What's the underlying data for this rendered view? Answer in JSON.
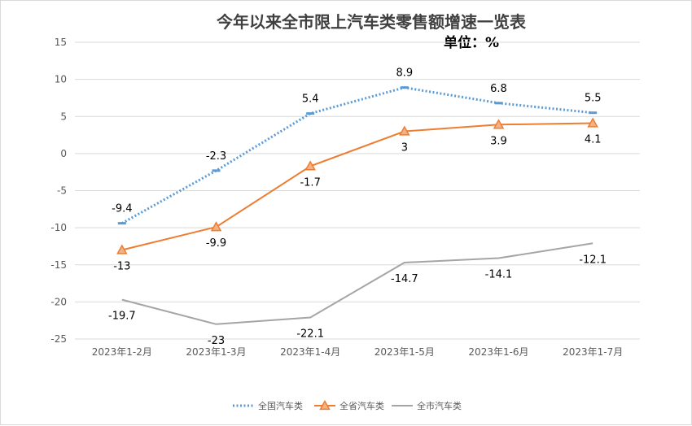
{
  "chart_data": {
    "type": "line",
    "title": "今年以来全市限上汽车类零售额增速一览表",
    "unit_note": "单位：%",
    "categories": [
      "2023年1-2月",
      "2023年1-3月",
      "2023年1-4月",
      "2023年1-5月",
      "2023年1-6月",
      "2023年1-7月"
    ],
    "ylim": [
      -25,
      15
    ],
    "yticks": [
      -25,
      -20,
      -15,
      -10,
      -5,
      0,
      5,
      10,
      15
    ],
    "grid": true,
    "legend_position": "bottom",
    "series": [
      {
        "name": "全国汽车类",
        "values": [
          -9.4,
          -2.3,
          5.4,
          8.9,
          6.8,
          5.5
        ],
        "color": "#5b9bd5",
        "style": "dotted",
        "marker": "dash",
        "label_position": "above"
      },
      {
        "name": "全省汽车类",
        "values": [
          -13,
          -9.9,
          -1.7,
          3,
          3.9,
          4.1
        ],
        "color": "#ed7d31",
        "style": "solid",
        "marker": "triangle",
        "label_position": "below"
      },
      {
        "name": "全市汽车类",
        "values": [
          -19.7,
          -23,
          -22.1,
          -14.7,
          -14.1,
          -12.1
        ],
        "color": "#a5a5a5",
        "style": "solid",
        "marker": "none",
        "label_position": "below"
      }
    ]
  }
}
